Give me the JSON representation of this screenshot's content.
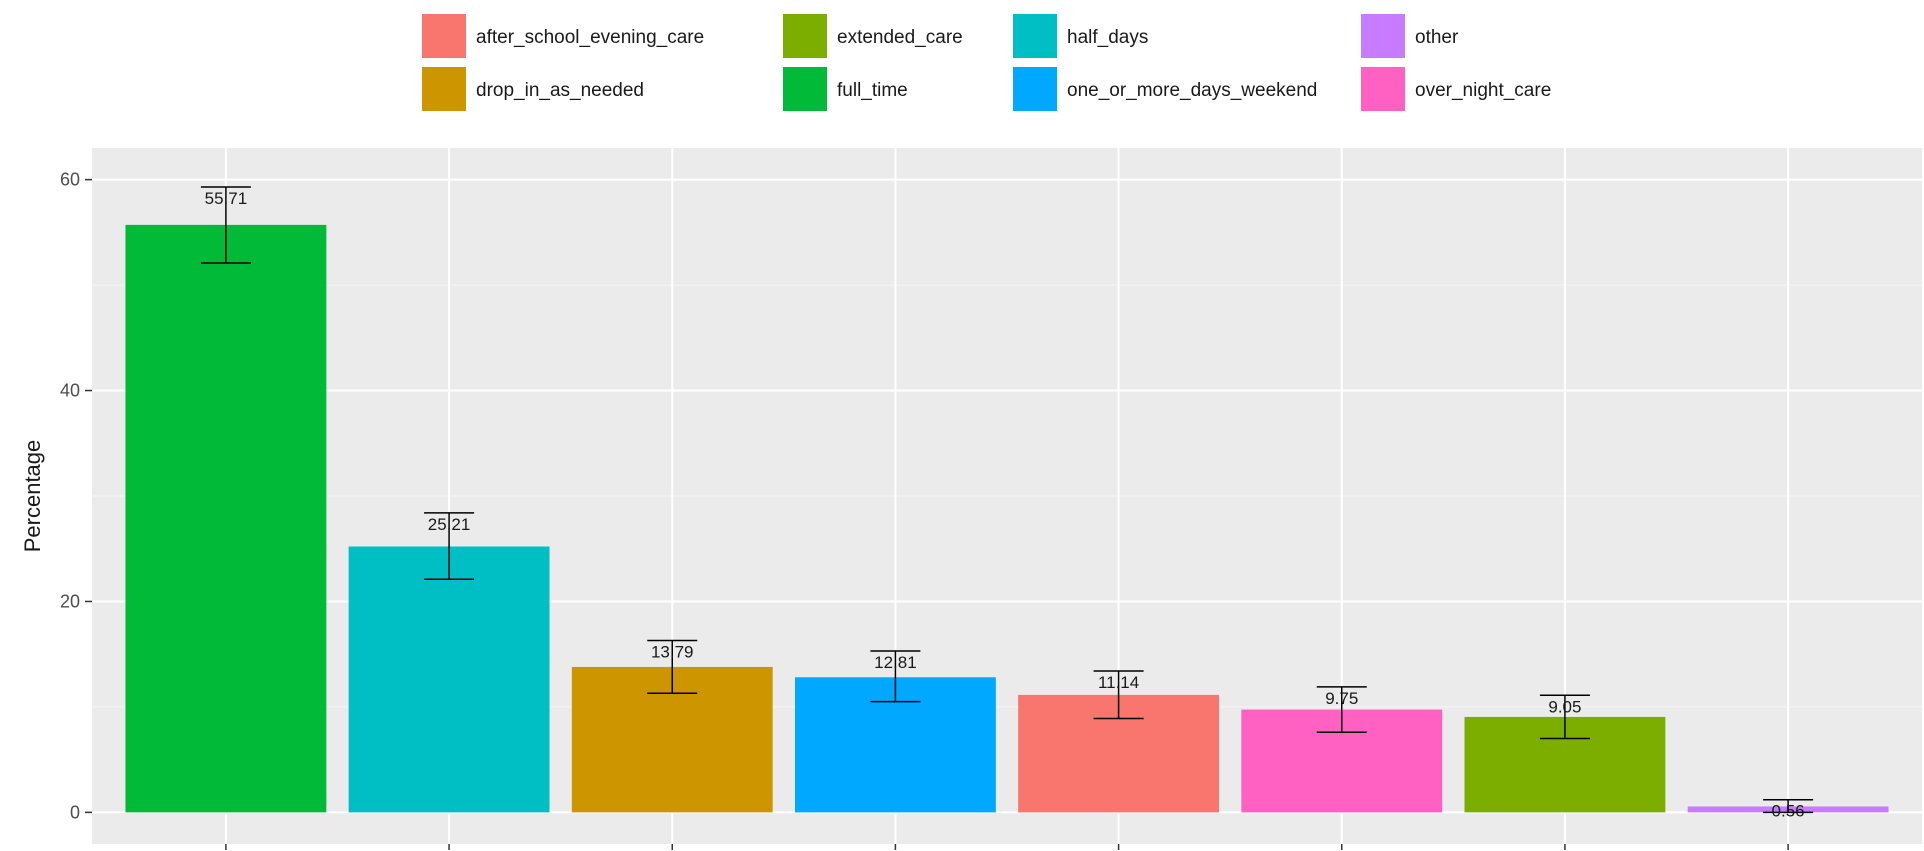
{
  "chart_data": {
    "type": "bar",
    "title": "",
    "xlabel": "",
    "ylabel": "Percentage",
    "ylim": [
      -3,
      63
    ],
    "yticks": [
      0,
      20,
      40,
      60
    ],
    "grid": true,
    "legend_position": "top",
    "categories": [
      "full_time",
      "half_days",
      "drop_in_as_needed",
      "one_or_more_days_weekend",
      "after_school_evening_care",
      "over_night_care",
      "extended_care",
      "other"
    ],
    "values": [
      55.71,
      25.21,
      13.79,
      12.81,
      11.14,
      9.75,
      9.05,
      0.56
    ],
    "value_labels": [
      "55.71",
      "25.21",
      "13.79",
      "12.81",
      "11.14",
      "9.75",
      "9.05",
      "0.56"
    ],
    "error_low": [
      52.1,
      22.1,
      11.3,
      10.5,
      8.9,
      7.6,
      7.0,
      0.0
    ],
    "error_high": [
      59.3,
      28.4,
      16.3,
      15.3,
      13.4,
      11.9,
      11.1,
      1.2
    ],
    "colors": {
      "full_time": "#00BA38",
      "half_days": "#00BFC4",
      "drop_in_as_needed": "#CD9600",
      "one_or_more_days_weekend": "#00A9FF",
      "after_school_evening_care": "#F8766D",
      "over_night_care": "#FF61C3",
      "extended_care": "#7CAE00",
      "other": "#C77CFF"
    },
    "legend": [
      {
        "key": "after_school_evening_care",
        "label": "after_school_evening_care"
      },
      {
        "key": "drop_in_as_needed",
        "label": "drop_in_as_needed"
      },
      {
        "key": "extended_care",
        "label": "extended_care"
      },
      {
        "key": "full_time",
        "label": "full_time"
      },
      {
        "key": "half_days",
        "label": "half_days"
      },
      {
        "key": "one_or_more_days_weekend",
        "label": "one_or_more_days_weekend"
      },
      {
        "key": "other",
        "label": "other"
      },
      {
        "key": "over_night_care",
        "label": "over_night_care"
      }
    ]
  }
}
